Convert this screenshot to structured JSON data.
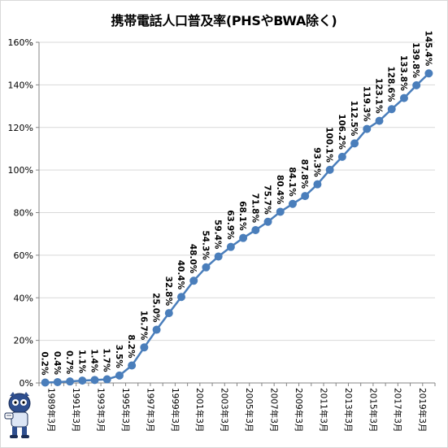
{
  "chart_data": {
    "type": "line",
    "title": "携帯電話人口普及率(PHSやBWA除く)",
    "xlabel": "",
    "ylabel": "",
    "ylim": [
      0,
      160
    ],
    "yticks": [
      "0%",
      "20%",
      "40%",
      "60%",
      "80%",
      "100%",
      "120%",
      "140%",
      "160%"
    ],
    "x": [
      "1989年3月",
      "1990年3月",
      "1991年3月",
      "1992年3月",
      "1993年3月",
      "1994年3月",
      "1995年3月",
      "1996年3月",
      "1997年3月",
      "1998年3月",
      "1999年3月",
      "2000年3月",
      "2001年3月",
      "2002年3月",
      "2003年3月",
      "2004年3月",
      "2005年3月",
      "2006年3月",
      "2007年3月",
      "2008年3月",
      "2009年3月",
      "2010年3月",
      "2011年3月",
      "2012年3月",
      "2013年3月",
      "2014年3月",
      "2015年3月",
      "2016年3月",
      "2017年3月",
      "2018年3月",
      "2019年3月",
      "2020年3月"
    ],
    "xtick_labels": [
      "1989年3月",
      "1991年3月",
      "1993年3月",
      "1995年3月",
      "1997年3月",
      "1999年3月",
      "2001年3月",
      "2003年3月",
      "2005年3月",
      "2007年3月",
      "2009年3月",
      "2011年3月",
      "2013年3月",
      "2015年3月",
      "2017年3月",
      "2019年3月"
    ],
    "values": [
      0.2,
      0.4,
      0.7,
      1.1,
      1.4,
      1.7,
      3.5,
      8.2,
      16.7,
      25.0,
      32.8,
      40.4,
      48.0,
      54.3,
      59.4,
      63.9,
      68.1,
      71.8,
      75.7,
      80.4,
      84.1,
      87.8,
      93.3,
      100.1,
      106.2,
      112.5,
      119.3,
      123.1,
      128.6,
      133.8,
      139.8,
      145.4
    ],
    "data_labels": [
      "0.2%",
      "0.4%",
      "0.7%",
      "1.1%",
      "1.4%",
      "1.7%",
      "3.5%",
      "8.2%",
      "16.7%",
      "25.0%",
      "32.8%",
      "40.4%",
      "48.0%",
      "54.3%",
      "59.4%",
      "63.9%",
      "68.1%",
      "71.8%",
      "75.7%",
      "80.4%",
      "84.1%",
      "87.8%",
      "93.3%",
      "100.1%",
      "106.2%",
      "112.5%",
      "119.3%",
      "123.1%",
      "128.6%",
      "133.8%",
      "139.8%",
      "145.4%"
    ],
    "series_color": "#4a7ebb",
    "grid": true,
    "grid_color": "#d9d9d9",
    "legend": "none"
  },
  "mascot": {
    "icon": "mascot-character-icon"
  }
}
